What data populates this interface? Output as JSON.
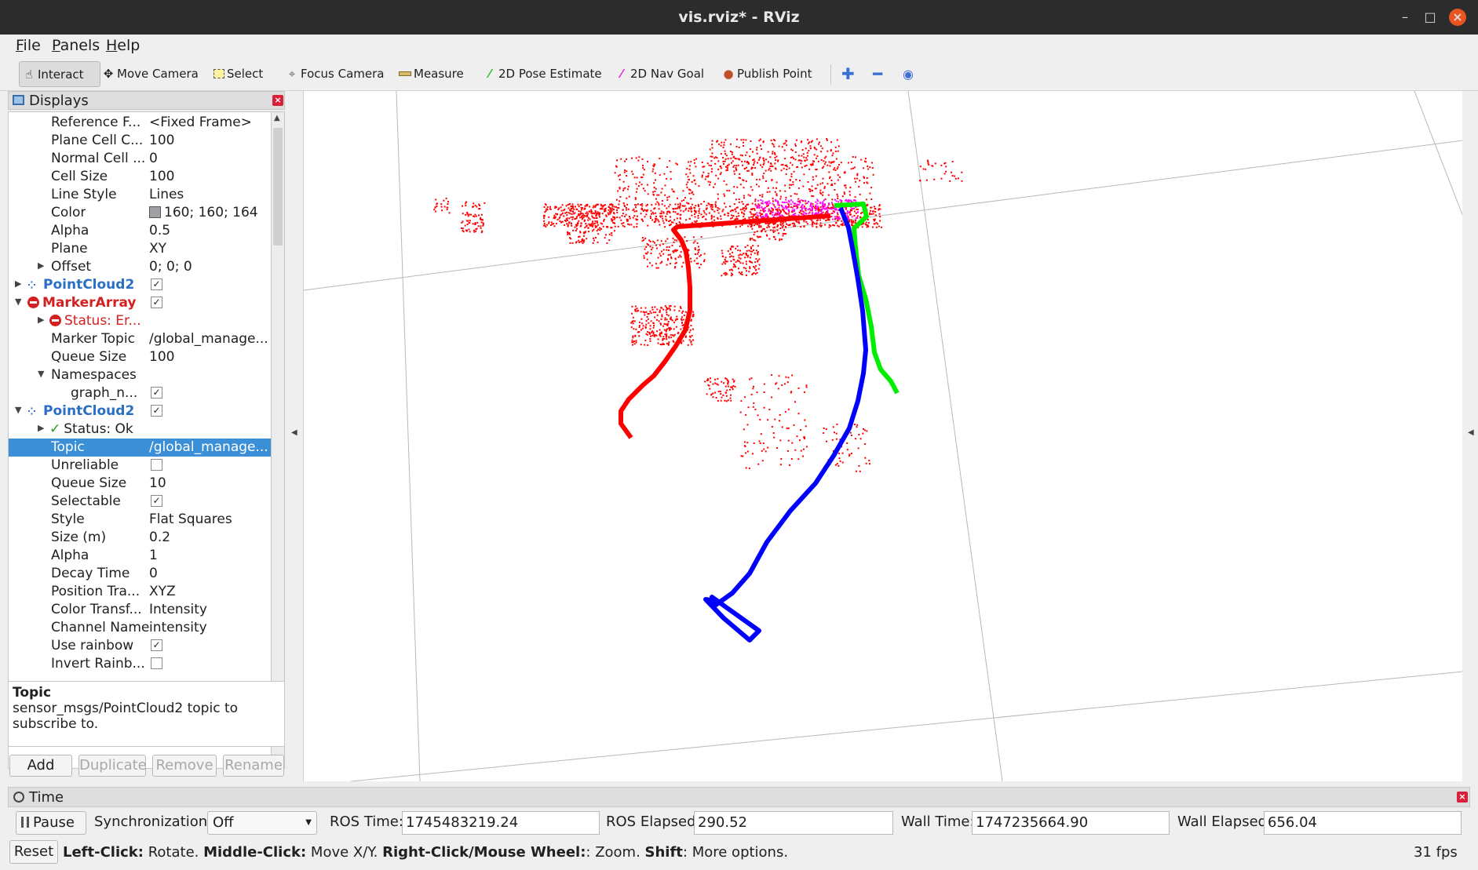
{
  "window": {
    "title": "vis.rviz* - RViz"
  },
  "menu": [
    "File",
    "Panels",
    "Help"
  ],
  "toolbar": {
    "interact": "Interact",
    "move_camera": "Move Camera",
    "select": "Select",
    "focus_camera": "Focus Camera",
    "measure": "Measure",
    "pose_estimate": "2D Pose Estimate",
    "nav_goal": "2D Nav Goal",
    "publish_point": "Publish Point"
  },
  "displays": {
    "title": "Displays",
    "rows": [
      {
        "key": "Reference F...",
        "value": "<Fixed Frame>"
      },
      {
        "key": "Plane Cell C...",
        "value": "100"
      },
      {
        "key": "Normal Cell ...",
        "value": "0"
      },
      {
        "key": "Cell Size",
        "value": "100"
      },
      {
        "key": "Line Style",
        "value": "Lines"
      },
      {
        "key": "Color",
        "value": "160; 160; 164"
      },
      {
        "key": "Alpha",
        "value": "0.5"
      },
      {
        "key": "Plane",
        "value": "XY"
      },
      {
        "key": "Offset",
        "value": "0; 0; 0"
      },
      {
        "key": "PointCloud2",
        "value": ""
      },
      {
        "key": "MarkerArray",
        "value": ""
      },
      {
        "key": "Status: Er...",
        "value": ""
      },
      {
        "key": "Marker Topic",
        "value": "/global_manage..."
      },
      {
        "key": "Queue Size",
        "value": "100"
      },
      {
        "key": "Namespaces",
        "value": ""
      },
      {
        "key": "graph_n...",
        "value": ""
      },
      {
        "key": "PointCloud2",
        "value": ""
      },
      {
        "key": "Status: Ok",
        "value": ""
      },
      {
        "key": "Topic",
        "value": "/global_manage..."
      },
      {
        "key": "Unreliable",
        "value": ""
      },
      {
        "key": "Queue Size",
        "value": "10"
      },
      {
        "key": "Selectable",
        "value": ""
      },
      {
        "key": "Style",
        "value": "Flat Squares"
      },
      {
        "key": "Size (m)",
        "value": "0.2"
      },
      {
        "key": "Alpha",
        "value": "1"
      },
      {
        "key": "Decay Time",
        "value": "0"
      },
      {
        "key": "Position Tra...",
        "value": "XYZ"
      },
      {
        "key": "Color Transf...",
        "value": "Intensity"
      },
      {
        "key": "Channel Name",
        "value": "intensity"
      },
      {
        "key": "Use rainbow",
        "value": ""
      },
      {
        "key": "Invert Rainb...",
        "value": ""
      }
    ]
  },
  "description": {
    "title": "Topic",
    "text": "sensor_msgs/PointCloud2 topic to subscribe to."
  },
  "panel_buttons": {
    "add": "Add",
    "duplicate": "Duplicate",
    "remove": "Remove",
    "rename": "Rename"
  },
  "time": {
    "title": "Time",
    "pause": "Pause",
    "sync_label": "Synchronization:",
    "sync_value": "Off",
    "ros_time_label": "ROS Time:",
    "ros_time": "1745483219.24",
    "ros_elapsed_label": "ROS Elapsed:",
    "ros_elapsed": "290.52",
    "wall_time_label": "Wall Time:",
    "wall_time": "1747235664.90",
    "wall_elapsed_label": "Wall Elapsed:",
    "wall_elapsed": "656.04"
  },
  "status": {
    "reset": "Reset",
    "help_b1": "Left-Click:",
    "help_t1": " Rotate. ",
    "help_b2": "Middle-Click:",
    "help_t2": " Move X/Y. ",
    "help_b3": "Right-Click/Mouse Wheel:",
    "help_t3": ": Zoom. ",
    "help_b4": "Shift",
    "help_t4": ": More options.",
    "fps": "31 fps"
  },
  "colors": {
    "path_red": "#ff0000",
    "path_green": "#00ee00",
    "path_blue": "#0000ff",
    "cloud_magenta": "#ff00ff",
    "grid": "#a0a0a4",
    "selection": "#3a8fd6"
  }
}
